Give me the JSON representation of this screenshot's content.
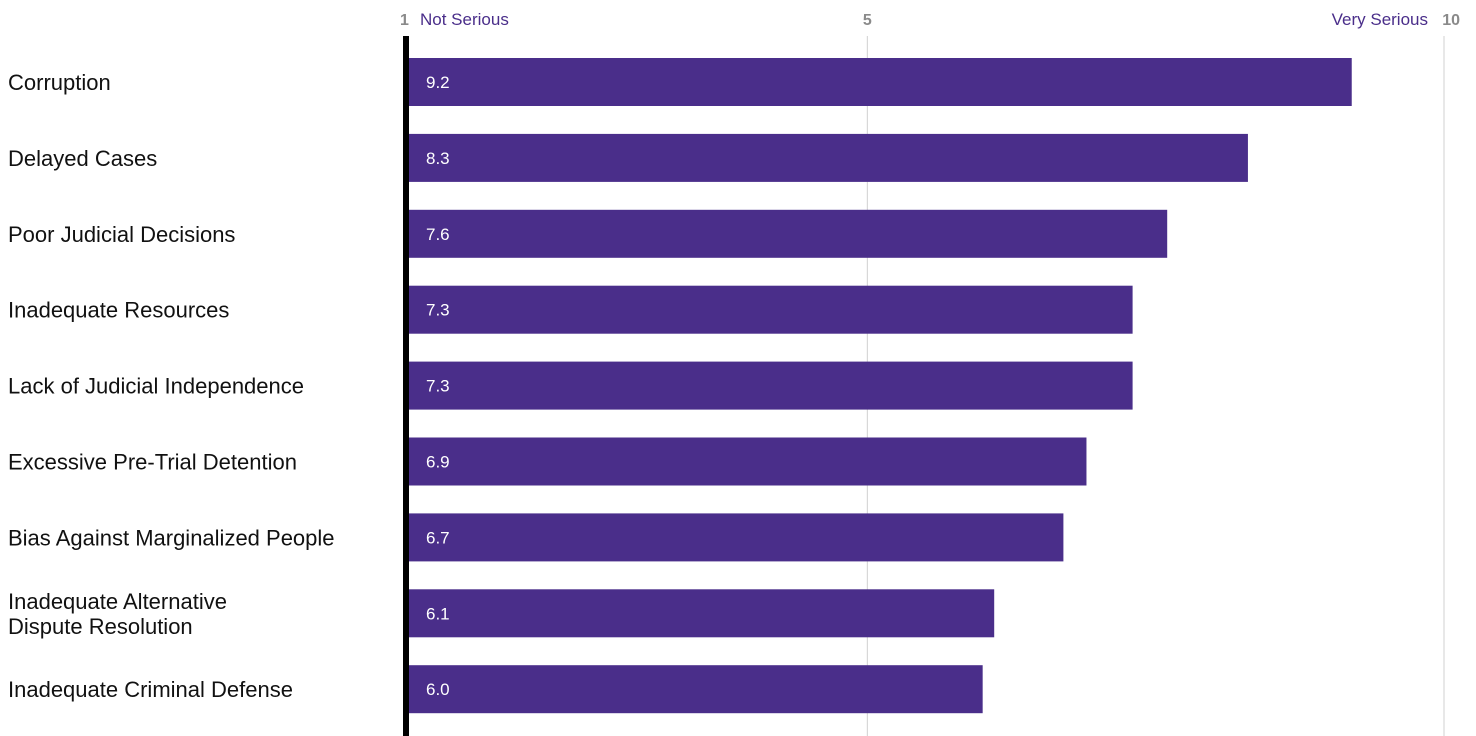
{
  "chart_data": {
    "type": "bar",
    "orientation": "horizontal",
    "categories": [
      "Corruption",
      "Delayed Cases",
      "Poor Judicial Decisions",
      "Inadequate Resources",
      "Lack of Judicial Independence",
      "Excessive Pre-Trial Detention",
      "Bias Against Marginalized People",
      "Inadequate Alternative Dispute Resolution",
      "Inadequate Criminal Defense"
    ],
    "category_lines": [
      [
        "Corruption"
      ],
      [
        "Delayed Cases"
      ],
      [
        "Poor Judicial Decisions"
      ],
      [
        "Inadequate Resources"
      ],
      [
        "Lack of Judicial Independence"
      ],
      [
        "Excessive Pre-Trial Detention"
      ],
      [
        "Bias Against Marginalized People"
      ],
      [
        "Inadequate Alternative",
        "Dispute Resolution"
      ],
      [
        "Inadequate Criminal Defense"
      ]
    ],
    "values": [
      9.2,
      8.3,
      7.6,
      7.3,
      7.3,
      6.9,
      6.7,
      6.1,
      6.0
    ],
    "value_labels": [
      "9.2",
      "8.3",
      "7.6",
      "7.3",
      "7.3",
      "6.9",
      "6.7",
      "6.1",
      "6.0"
    ],
    "xlim": [
      1,
      10
    ],
    "ticks": [
      {
        "value": 1,
        "label": "1"
      },
      {
        "value": 5,
        "label": "5"
      },
      {
        "value": 10,
        "label": "10"
      }
    ],
    "scale_low_label": "Not Serious",
    "scale_high_label": "Very Serious",
    "bar_color": "#4a2e8a",
    "axis_color": "#000000",
    "grid_color": "#d0d0d0",
    "grid": true
  }
}
